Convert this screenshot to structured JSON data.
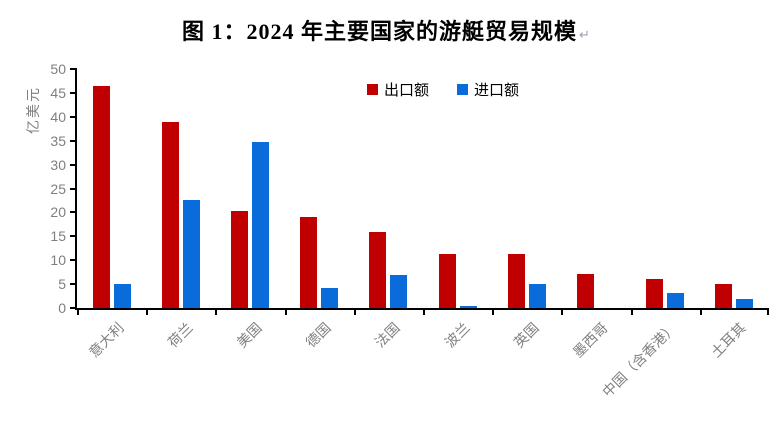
{
  "title": {
    "text": "图 1：2024 年主要国家的游艇贸易规模",
    "paragraph_mark": "↵"
  },
  "chart_data": {
    "type": "bar",
    "title": "图 1：2024 年主要国家的游艇贸易规模",
    "xlabel": "",
    "ylabel": "亿美元",
    "ylim": [
      0,
      50
    ],
    "ytick_step": 5,
    "y_ticks": [
      "0",
      "5",
      "10",
      "15",
      "20",
      "25",
      "30",
      "35",
      "40",
      "45",
      "50"
    ],
    "grid": false,
    "legend_position": "top-center-inside",
    "categories": [
      "意大利",
      "荷兰",
      "美国",
      "德国",
      "法国",
      "波兰",
      "英国",
      "墨西哥",
      "中国（含香港）",
      "土耳其"
    ],
    "series": [
      {
        "name": "出口额",
        "color": "#c00000",
        "values": [
          46.5,
          39.0,
          20.3,
          19.1,
          16.0,
          11.2,
          11.2,
          7.2,
          6.1,
          5.0
        ]
      },
      {
        "name": "进口额",
        "color": "#0a6bdb",
        "values": [
          5.1,
          22.5,
          34.7,
          4.1,
          7.0,
          0.5,
          5.1,
          0,
          3.2,
          1.8
        ]
      }
    ]
  }
}
